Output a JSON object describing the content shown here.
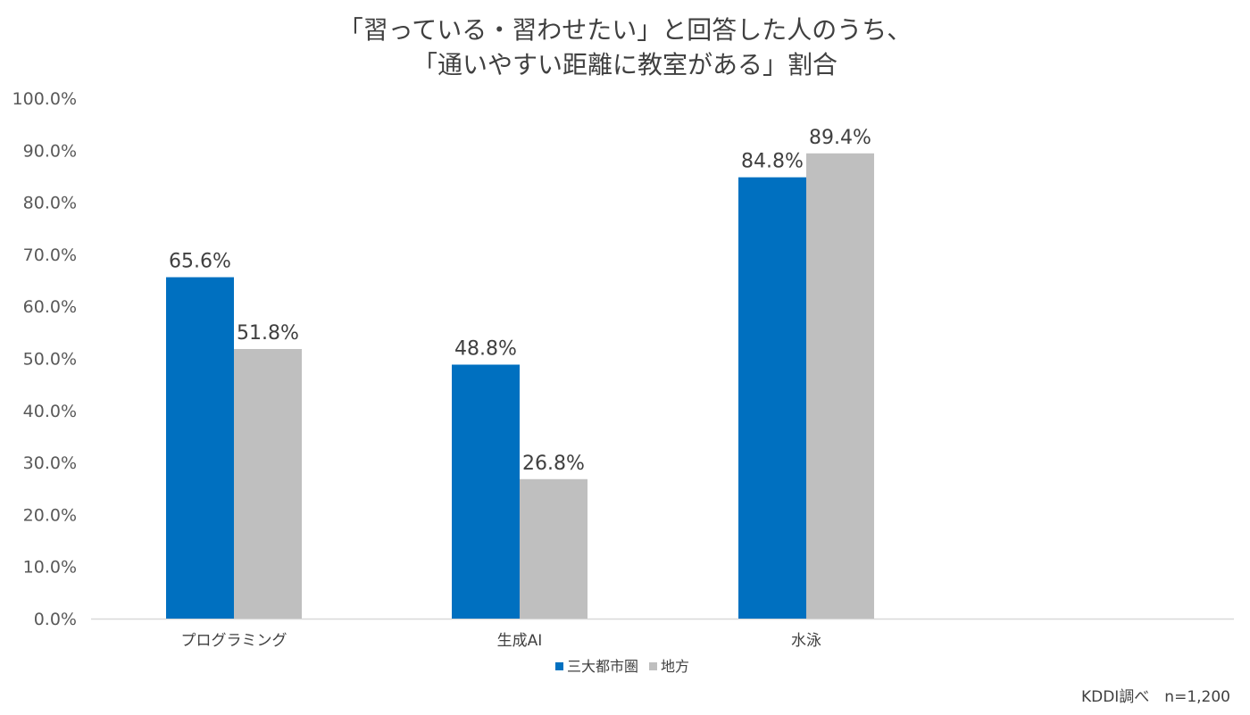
{
  "chart_data": {
    "type": "bar",
    "title_lines": [
      "「習っている・習わせたい」と回答した人のうち、",
      "「通いやすい距離に教室がある」割合"
    ],
    "categories": [
      "プログラミング",
      "生成AI",
      "水泳"
    ],
    "series": [
      {
        "name": "三大都市圏",
        "values": [
          65.6,
          48.8,
          84.8
        ],
        "labels": [
          "65.6%",
          "48.8%",
          "84.8%"
        ],
        "color": "#0070C0"
      },
      {
        "name": "地方",
        "values": [
          51.8,
          26.8,
          89.4
        ],
        "labels": [
          "51.8%",
          "26.8%",
          "89.4%"
        ],
        "color": "#BFBFBF"
      }
    ],
    "ylim": [
      0,
      100
    ],
    "yticks": [
      0,
      10,
      20,
      30,
      40,
      50,
      60,
      70,
      80,
      90,
      100
    ],
    "ytick_labels": [
      "0.0%",
      "10.0%",
      "20.0%",
      "30.0%",
      "40.0%",
      "50.0%",
      "60.0%",
      "70.0%",
      "80.0%",
      "90.0%",
      "100.0%"
    ],
    "legend_position": "bottom",
    "grid": false,
    "axis_color": "#D9D9D9",
    "note": "KDDI調べ　n=1,200"
  }
}
